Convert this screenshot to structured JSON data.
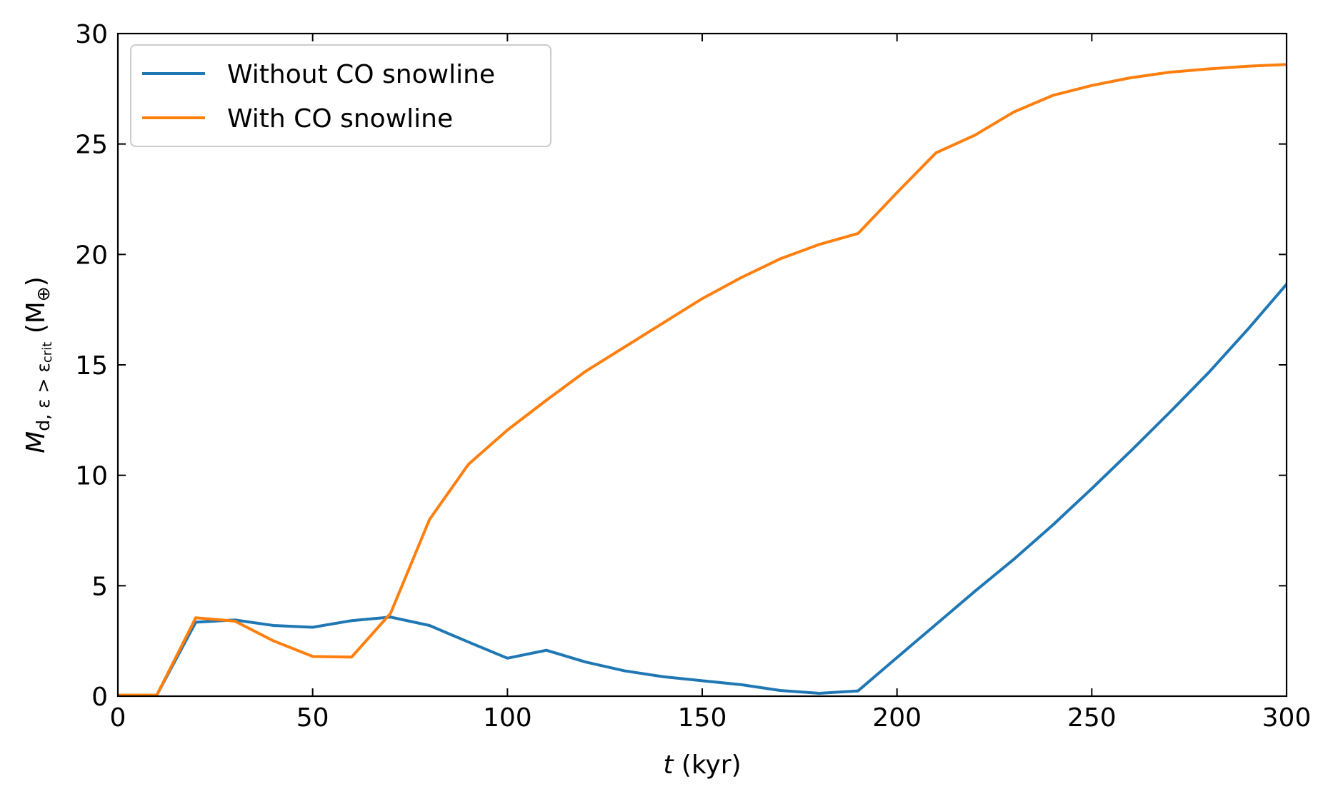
{
  "chart_data": {
    "type": "line",
    "title": "",
    "xlabel": {
      "italic": "t",
      "rest": " (kyr)"
    },
    "ylabel": {
      "main": "M",
      "sub1": "d, ε > ε",
      "sub2": "crit",
      "unit_open": " (M",
      "unit_sub": "⊕",
      "unit_close": ")"
    },
    "xlim": [
      0,
      300
    ],
    "ylim": [
      0,
      30
    ],
    "xticks": [
      0,
      50,
      100,
      150,
      200,
      250,
      300
    ],
    "yticks": [
      0,
      5,
      10,
      15,
      20,
      25,
      30
    ],
    "grid": false,
    "legend_position": "top-left",
    "x": [
      0,
      10,
      20,
      30,
      40,
      50,
      60,
      70,
      80,
      90,
      100,
      110,
      120,
      130,
      140,
      150,
      160,
      170,
      180,
      190,
      200,
      210,
      220,
      230,
      240,
      250,
      260,
      270,
      280,
      290,
      300
    ],
    "series": [
      {
        "name": "Without CO snowline",
        "color": "#1f77b4",
        "values": [
          0.05,
          0.05,
          3.35,
          3.45,
          3.2,
          3.12,
          3.42,
          3.58,
          3.2,
          2.45,
          1.72,
          2.08,
          1.55,
          1.15,
          0.88,
          0.7,
          0.52,
          0.26,
          0.13,
          0.24,
          1.75,
          3.25,
          4.75,
          6.2,
          7.75,
          9.4,
          11.1,
          12.85,
          14.65,
          16.6,
          18.65
        ]
      },
      {
        "name": "With CO snowline",
        "color": "#ff7f0e",
        "values": [
          0.05,
          0.05,
          3.55,
          3.4,
          2.5,
          1.8,
          1.77,
          3.75,
          8.0,
          10.5,
          12.05,
          13.4,
          14.7,
          15.8,
          16.9,
          18.0,
          18.95,
          19.8,
          20.45,
          20.95,
          22.8,
          24.6,
          25.4,
          26.45,
          27.2,
          27.65,
          28.0,
          28.25,
          28.4,
          28.52,
          28.6
        ]
      }
    ]
  }
}
